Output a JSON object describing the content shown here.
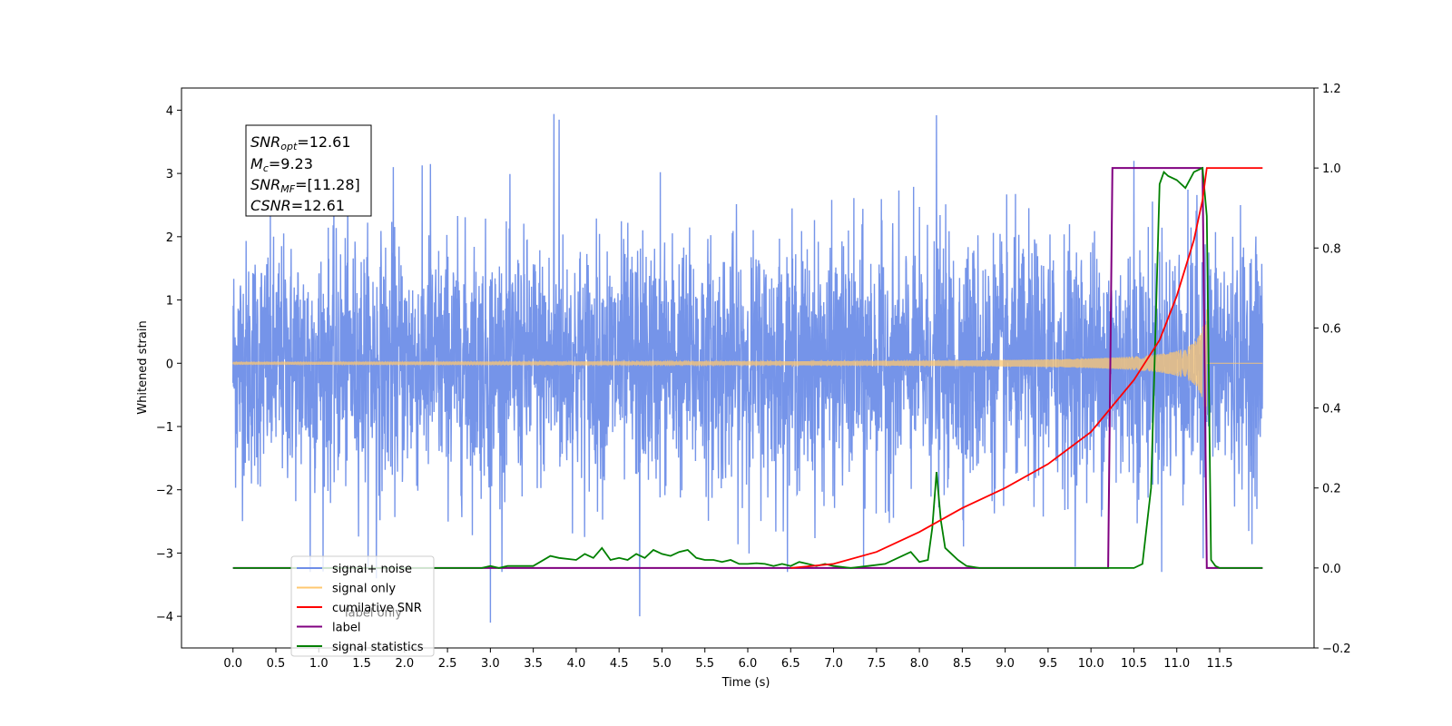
{
  "chart_data": {
    "type": "line",
    "xlabel": "Time (s)",
    "ylabel_left": "Whitened strain",
    "ylabel_right": "",
    "xlim": [
      -0.6,
      12.6
    ],
    "ylim_left": [
      -4.5,
      4.35
    ],
    "ylim_right": [
      -0.2,
      1.2
    ],
    "x_ticks": [
      0.0,
      0.5,
      1.0,
      1.5,
      2.0,
      2.5,
      3.0,
      3.5,
      4.0,
      4.5,
      5.0,
      5.5,
      6.0,
      6.5,
      7.0,
      7.5,
      8.0,
      8.5,
      9.0,
      9.5,
      10.0,
      10.5,
      11.0,
      11.5
    ],
    "x_tick_labels": [
      "0.0",
      "0.5",
      "1.0",
      "1.5",
      "2.0",
      "2.5",
      "3.0",
      "3.5",
      "4.0",
      "4.5",
      "5.0",
      "5.5",
      "6.0",
      "6.5",
      "7.0",
      "7.5",
      "8.0",
      "8.5",
      "9.0",
      "9.5",
      "10.0",
      "10.5",
      "11.0",
      "11.5"
    ],
    "y_left_ticks": [
      4,
      3,
      2,
      1,
      0,
      -1,
      -2,
      -3,
      -4
    ],
    "y_left_tick_labels": [
      "4",
      "3",
      "2",
      "1",
      "0",
      "−1",
      "−2",
      "−3",
      "−4"
    ],
    "y_right_ticks": [
      1.2,
      1.0,
      0.8,
      0.6,
      0.4,
      0.2,
      0.0,
      -0.2
    ],
    "y_right_tick_labels": [
      "1.2",
      "1.0",
      "0.8",
      "0.6",
      "0.4",
      "0.2",
      "0.0",
      "−0.2"
    ],
    "annotation": {
      "lines": [
        {
          "base": "SNR",
          "sub": "opt",
          "value": "=12.61"
        },
        {
          "base": "M",
          "sub": "c",
          "value": "=9.23"
        },
        {
          "base": "SNR",
          "sub": "MF",
          "value": "=[11.28]"
        },
        {
          "base": "CSNR",
          "sub": "",
          "value": "=12.61"
        }
      ]
    },
    "legend": {
      "placement": "lower-left",
      "entries": [
        {
          "label": "signal+ noise",
          "color": "#6e8ee8"
        },
        {
          "label": "signal only",
          "color": "#ffc870"
        },
        {
          "label": "cumilative SNR",
          "color": "#ff0000"
        },
        {
          "label": "label",
          "color": "#800080"
        },
        {
          "label": "signal statistics",
          "color": "#008000"
        }
      ],
      "overlapped_label": "label only"
    },
    "series": [
      {
        "name": "signal+ noise",
        "axis": "left",
        "color": "#6e8ee8",
        "x_range": [
          0.0,
          12.0
        ],
        "envelope_typical": [
          -1.8,
          1.8
        ],
        "peaks": [
          [
            3.74,
            3.94
          ],
          [
            3.8,
            3.85
          ],
          [
            8.2,
            3.92
          ],
          [
            1.87,
            3.1
          ],
          [
            2.3,
            3.15
          ],
          [
            4.98,
            3.02
          ],
          [
            10.5,
            3.2
          ],
          [
            3.0,
            -4.1
          ],
          [
            4.74,
            -4.0
          ],
          [
            1.67,
            -3.4
          ],
          [
            0.9,
            -3.3
          ],
          [
            7.35,
            -3.2
          ]
        ]
      },
      {
        "name": "signal only",
        "axis": "left",
        "color": "#ffc870",
        "chirp_t0": 6.8,
        "merger_t": 11.35,
        "peak_amplitude": 0.95,
        "x_range": [
          0.0,
          12.0
        ]
      },
      {
        "name": "cumilative SNR",
        "axis": "right",
        "color": "#ff0000",
        "x": [
          6.5,
          7.0,
          7.5,
          8.0,
          8.5,
          9.0,
          9.5,
          10.0,
          10.5,
          10.8,
          11.0,
          11.2,
          11.3,
          11.35,
          12.0
        ],
        "y": [
          0.0,
          0.01,
          0.04,
          0.09,
          0.15,
          0.2,
          0.26,
          0.34,
          0.47,
          0.57,
          0.68,
          0.82,
          0.92,
          1.0,
          1.0
        ]
      },
      {
        "name": "label",
        "axis": "right",
        "color": "#800080",
        "x": [
          0.0,
          10.2,
          10.25,
          11.3,
          11.35,
          12.0
        ],
        "y": [
          0.0,
          0.0,
          1.0,
          1.0,
          -0.0,
          0.0
        ]
      },
      {
        "name": "signal statistics",
        "axis": "right",
        "color": "#008000",
        "x": [
          0.0,
          2.9,
          3.0,
          3.1,
          3.2,
          3.5,
          3.7,
          3.8,
          4.0,
          4.1,
          4.2,
          4.3,
          4.4,
          4.5,
          4.6,
          4.7,
          4.8,
          4.9,
          5.0,
          5.1,
          5.2,
          5.3,
          5.4,
          5.5,
          5.6,
          5.7,
          5.8,
          5.9,
          6.0,
          6.1,
          6.2,
          6.3,
          6.4,
          6.5,
          6.6,
          6.7,
          6.8,
          6.9,
          7.0,
          7.2,
          7.4,
          7.6,
          7.8,
          7.9,
          8.0,
          8.1,
          8.15,
          8.2,
          8.25,
          8.3,
          8.35,
          8.45,
          8.55,
          8.7,
          9.0,
          10.5,
          10.6,
          10.7,
          10.8,
          10.85,
          10.9,
          11.0,
          11.1,
          11.2,
          11.3,
          11.35,
          11.4,
          11.45,
          11.5,
          12.0
        ],
        "y": [
          0.0,
          0.0,
          0.005,
          0.0,
          0.005,
          0.005,
          0.03,
          0.025,
          0.02,
          0.035,
          0.025,
          0.05,
          0.02,
          0.025,
          0.02,
          0.035,
          0.025,
          0.045,
          0.035,
          0.03,
          0.04,
          0.045,
          0.025,
          0.02,
          0.02,
          0.015,
          0.02,
          0.01,
          0.01,
          0.012,
          0.01,
          0.005,
          0.01,
          0.005,
          0.015,
          0.01,
          0.005,
          0.01,
          0.005,
          0.0,
          0.005,
          0.01,
          0.03,
          0.04,
          0.015,
          0.02,
          0.1,
          0.24,
          0.12,
          0.05,
          0.04,
          0.02,
          0.005,
          0.0,
          0.0,
          0.0,
          0.01,
          0.2,
          0.96,
          0.99,
          0.98,
          0.97,
          0.95,
          0.99,
          1.0,
          0.88,
          0.02,
          0.005,
          0.0,
          0.0
        ]
      }
    ]
  }
}
